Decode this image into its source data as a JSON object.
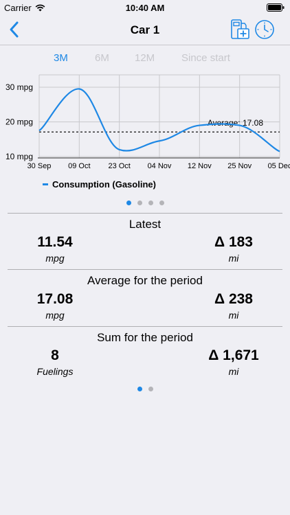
{
  "status_bar": {
    "carrier": "Carrier",
    "time": "10:40 AM"
  },
  "nav": {
    "title": "Car 1"
  },
  "periods": [
    {
      "label": "3M",
      "active": true
    },
    {
      "label": "6M",
      "active": false
    },
    {
      "label": "12M",
      "active": false
    },
    {
      "label": "Since start",
      "active": false
    }
  ],
  "chart_data": {
    "type": "line",
    "ytick_labels": [
      "30 mpg",
      "20 mpg",
      "10 mpg"
    ],
    "yticks": [
      30,
      20,
      10
    ],
    "ylim": [
      10,
      30
    ],
    "xtick_labels": [
      "30 Sep",
      "09 Oct",
      "23 Oct",
      "04 Nov",
      "12 Nov",
      "25 Nov",
      "05 Dec"
    ],
    "series": [
      {
        "name": "Consumption (Gasoline)",
        "color": "#1e88e5",
        "points": [
          {
            "x": "30 Sep",
            "y": 17.5
          },
          {
            "x": "09 Oct",
            "y": 29.5
          },
          {
            "x": "23 Oct",
            "y": 12.0
          },
          {
            "x": "04 Nov",
            "y": 14.5
          },
          {
            "x": "12 Nov",
            "y": 19.0
          },
          {
            "x": "25 Nov",
            "y": 19.0
          },
          {
            "x": "05 Dec",
            "y": 11.5
          }
        ]
      }
    ],
    "average": {
      "label": "Average: 17.08",
      "value": 17.08
    },
    "grid": true,
    "legend_position": "bottom-left"
  },
  "legend": {
    "label": "Consumption (Gasoline)"
  },
  "chart_pager": {
    "count": 4,
    "active": 0
  },
  "stats": [
    {
      "title": "Latest",
      "left_value": "11.54",
      "left_unit": "mpg",
      "right_value": "Δ 183",
      "right_unit": "mi"
    },
    {
      "title": "Average for the period",
      "left_value": "17.08",
      "left_unit": "mpg",
      "right_value": "Δ 238",
      "right_unit": "mi"
    },
    {
      "title": "Sum for the period",
      "left_value": "8",
      "left_unit": "Fuelings",
      "right_value": "Δ 1,671",
      "right_unit": "mi"
    }
  ],
  "stats_pager": {
    "count": 2,
    "active": 0
  }
}
